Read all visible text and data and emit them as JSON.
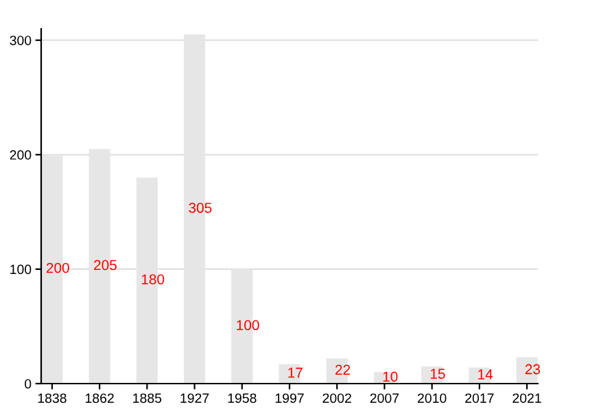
{
  "chart_data": {
    "type": "bar",
    "categories": [
      "1838",
      "1862",
      "1885",
      "1927",
      "1958",
      "1997",
      "2002",
      "2007",
      "2010",
      "2017",
      "2021"
    ],
    "values": [
      200,
      205,
      180,
      305,
      100,
      17,
      22,
      10,
      15,
      14,
      23
    ],
    "color": "#e6e6e6",
    "ylim": [
      0,
      310
    ],
    "yticks": [
      0,
      100,
      200,
      300
    ],
    "grid": "y",
    "data_labels": true
  }
}
